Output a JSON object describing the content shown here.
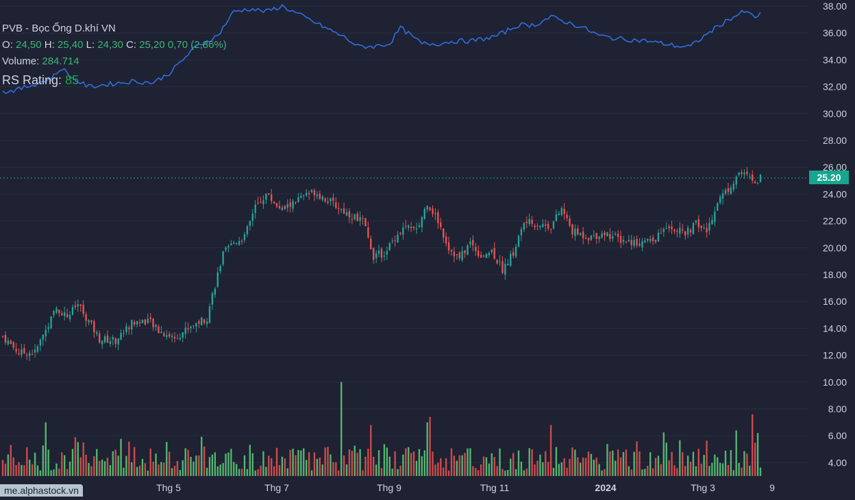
{
  "header": {
    "title": "PVB - Bọc Ống D.khí VN",
    "open_label": "O:",
    "open": "24,50",
    "high_label": "H:",
    "high": "25,40",
    "low_label": "L:",
    "low": "24,30",
    "close_label": "C:",
    "close": "25,20",
    "change": "0,70 (2,86%)",
    "volume_label": "Volume:",
    "volume": "284.714",
    "rs_label": "RS Rating:",
    "rs_value": "85"
  },
  "price_badge": "25.20",
  "watermark": "me.alphastock.vn",
  "colors": {
    "background": "#1e2233",
    "grid": "#2a2e42",
    "up": "#26a69a",
    "down": "#ef5350",
    "vol_up": "#5fd17a",
    "vol_down": "#ef5350",
    "rs_line": "#2f6fe0",
    "axis_text": "#d1d4dc",
    "last_price": "#17a58f"
  },
  "chart_data": {
    "type": "candlestick",
    "y_axis_ticks": [
      "38.00",
      "36.00",
      "34.00",
      "32.00",
      "30.00",
      "28.00",
      "26.00",
      "24.00",
      "22.00",
      "20.00",
      "18.00",
      "16.00",
      "14.00",
      "12.00",
      "10.00",
      "8.00",
      "6.00",
      "4.00"
    ],
    "ylim": [
      3,
      38.5
    ],
    "x_axis_ticks": [
      "Thg 5",
      "Thg 7",
      "Thg 9",
      "Thg 11",
      "2024",
      "Thg 3",
      "9"
    ],
    "last_price": 25.2,
    "close_path": [
      [
        0,
        13.4
      ],
      [
        6,
        12.2
      ],
      [
        12,
        12.2
      ],
      [
        16,
        13.9
      ],
      [
        20,
        15.5
      ],
      [
        24,
        14.9
      ],
      [
        28,
        15.8
      ],
      [
        32,
        14.5
      ],
      [
        36,
        13.2
      ],
      [
        42,
        13.1
      ],
      [
        48,
        14.4
      ],
      [
        54,
        14.6
      ],
      [
        58,
        13.8
      ],
      [
        64,
        13.3
      ],
      [
        70,
        14.2
      ],
      [
        76,
        14.8
      ],
      [
        78,
        16.5
      ],
      [
        82,
        19.5
      ],
      [
        86,
        20.4
      ],
      [
        90,
        20.8
      ],
      [
        94,
        23.0
      ],
      [
        98,
        24.0
      ],
      [
        104,
        22.8
      ],
      [
        110,
        23.6
      ],
      [
        116,
        24.2
      ],
      [
        122,
        23.4
      ],
      [
        128,
        22.6
      ],
      [
        134,
        22.0
      ],
      [
        138,
        19.4
      ],
      [
        142,
        19.6
      ],
      [
        146,
        20.8
      ],
      [
        150,
        21.6
      ],
      [
        154,
        21.2
      ],
      [
        158,
        23.4
      ],
      [
        162,
        22.0
      ],
      [
        166,
        20.0
      ],
      [
        170,
        19.2
      ],
      [
        174,
        20.4
      ],
      [
        178,
        19.4
      ],
      [
        182,
        19.8
      ],
      [
        186,
        18.4
      ],
      [
        190,
        19.6
      ],
      [
        194,
        21.9
      ],
      [
        198,
        21.8
      ],
      [
        204,
        21.6
      ],
      [
        208,
        22.9
      ],
      [
        212,
        21.2
      ],
      [
        218,
        20.8
      ],
      [
        224,
        21.1
      ],
      [
        230,
        20.6
      ],
      [
        236,
        20.4
      ],
      [
        242,
        20.5
      ],
      [
        248,
        21.7
      ],
      [
        254,
        21.0
      ],
      [
        258,
        21.8
      ],
      [
        262,
        21.2
      ],
      [
        266,
        23.5
      ],
      [
        270,
        24.4
      ],
      [
        274,
        25.6
      ],
      [
        278,
        25.2
      ],
      [
        280,
        24.8
      ],
      [
        282,
        25.2
      ]
    ],
    "rs_path": [
      [
        0,
        31.6
      ],
      [
        6,
        31.8
      ],
      [
        12,
        32.2
      ],
      [
        18,
        32.6
      ],
      [
        22,
        33.4
      ],
      [
        26,
        32.6
      ],
      [
        32,
        32.0
      ],
      [
        40,
        32.2
      ],
      [
        48,
        32.4
      ],
      [
        56,
        32.3
      ],
      [
        62,
        33.0
      ],
      [
        66,
        33.8
      ],
      [
        72,
        35.0
      ],
      [
        80,
        35.8
      ],
      [
        86,
        37.6
      ],
      [
        92,
        37.8
      ],
      [
        98,
        37.6
      ],
      [
        104,
        38.0
      ],
      [
        110,
        37.4
      ],
      [
        116,
        36.8
      ],
      [
        122,
        36.2
      ],
      [
        128,
        35.6
      ],
      [
        132,
        35.0
      ],
      [
        138,
        35.0
      ],
      [
        144,
        35.2
      ],
      [
        148,
        36.4
      ],
      [
        152,
        35.8
      ],
      [
        156,
        35.2
      ],
      [
        162,
        35.2
      ],
      [
        168,
        35.4
      ],
      [
        174,
        35.4
      ],
      [
        180,
        35.6
      ],
      [
        184,
        35.8
      ],
      [
        188,
        36.2
      ],
      [
        192,
        36.6
      ],
      [
        198,
        36.6
      ],
      [
        204,
        37.2
      ],
      [
        210,
        36.8
      ],
      [
        216,
        36.4
      ],
      [
        222,
        35.8
      ],
      [
        228,
        35.6
      ],
      [
        234,
        35.5
      ],
      [
        240,
        35.4
      ],
      [
        246,
        35.2
      ],
      [
        252,
        35.0
      ],
      [
        256,
        35.0
      ],
      [
        260,
        35.6
      ],
      [
        264,
        36.2
      ],
      [
        270,
        37.0
      ],
      [
        276,
        37.6
      ],
      [
        280,
        37.2
      ],
      [
        282,
        37.4
      ]
    ],
    "series": [
      {
        "name": "RS Rating",
        "type": "line"
      },
      {
        "name": "Volume",
        "type": "bar"
      }
    ]
  }
}
